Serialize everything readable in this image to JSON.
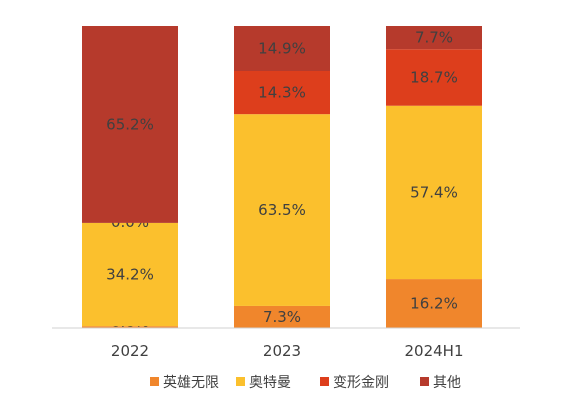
{
  "chart_data": {
    "type": "bar",
    "stacked": true,
    "normalized": true,
    "categories": [
      "2022",
      "2023",
      "2024H1"
    ],
    "series": [
      {
        "name": "英雄无限",
        "color": "#F0862C",
        "values": [
          0.6,
          7.3,
          16.2
        ],
        "labels": [
          "0.6%",
          "7.3%",
          "16.2%"
        ]
      },
      {
        "name": "奥特曼",
        "color": "#FBC02D",
        "values": [
          34.2,
          63.5,
          57.4
        ],
        "labels": [
          "34.2%",
          "63.5%",
          "57.4%"
        ]
      },
      {
        "name": "变形金刚",
        "color": "#DD3E1C",
        "values": [
          0.0,
          14.3,
          18.7
        ],
        "labels": [
          "0.0%",
          "14.3%",
          "18.7%"
        ]
      },
      {
        "name": "其他",
        "color": "#B63A2C",
        "values": [
          65.2,
          14.9,
          7.7
        ],
        "labels": [
          "65.2%",
          "14.9%",
          "7.7%"
        ]
      }
    ],
    "ylim": [
      0,
      100
    ],
    "grid": false,
    "legend_position": "bottom"
  }
}
